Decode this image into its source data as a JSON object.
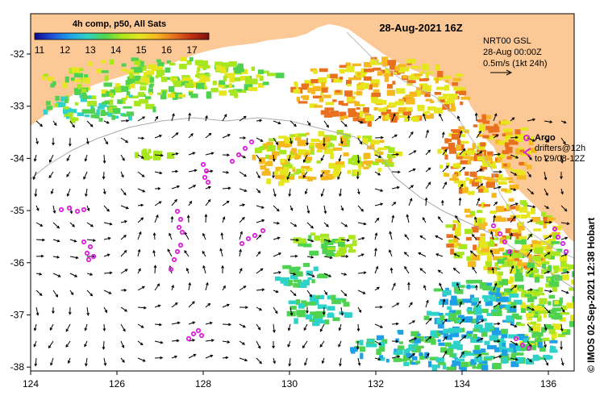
{
  "colorbar": {
    "title": "4h comp, p50, All Sats",
    "ticks": [
      "11",
      "12",
      "13",
      "14",
      "15",
      "16",
      "17"
    ],
    "colors": [
      "#0a0a8c",
      "#1f4fd8",
      "#1fa0e6",
      "#2fd2c8",
      "#4fd24f",
      "#a8e61f",
      "#e6e61f",
      "#f5b81f",
      "#e8701f",
      "#c03010",
      "#801010"
    ]
  },
  "date_title": "28-Aug-2021 16Z",
  "currents": {
    "line1": "NRT00 GSL",
    "line2": "28-Aug 00:00Z",
    "line3": "0.5m/s (1kt 24h)"
  },
  "argo": {
    "label": "Argo",
    "line1": "drifters@12h",
    "line2": "to 29/08-12Z"
  },
  "credit": "© IMOS 02-Sep-2021 12:38 Hobart",
  "axis": {
    "x_ticks": [
      "124",
      "126",
      "128",
      "130",
      "132",
      "134",
      "136"
    ],
    "y_ticks": [
      "-32",
      "-33",
      "-34",
      "-35",
      "-36",
      "-37",
      "-38"
    ]
  },
  "palette": {
    "land": "#fcc896",
    "vector": "#000000",
    "drifter": "#e020e0",
    "isobath": "#aaaaaa"
  }
}
